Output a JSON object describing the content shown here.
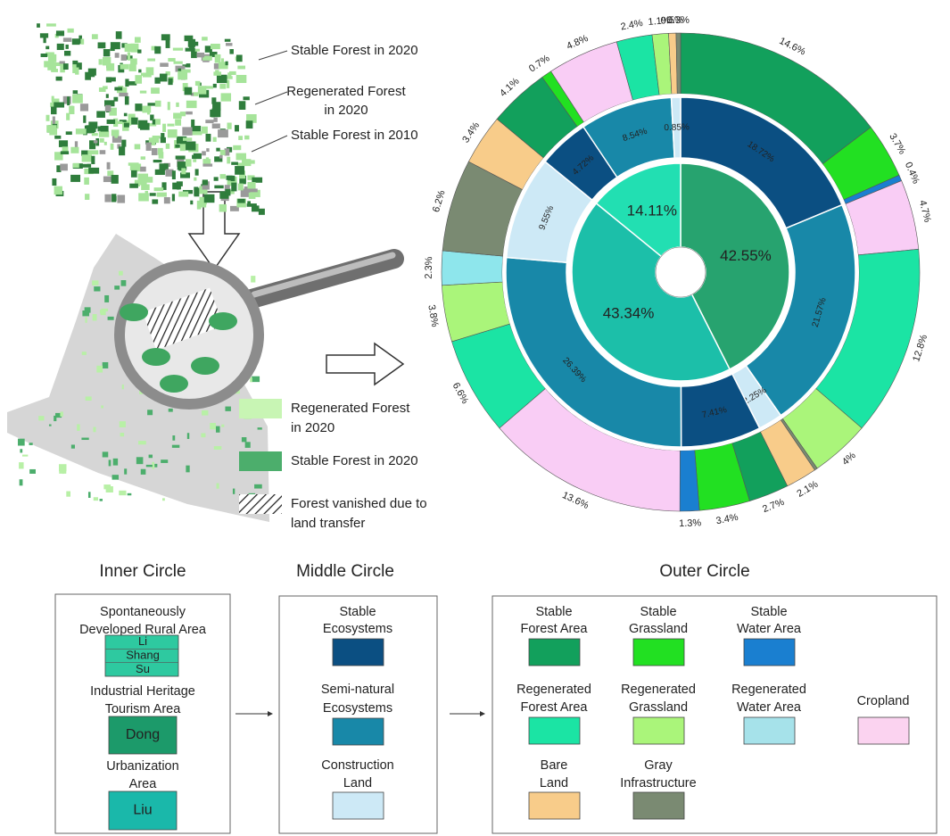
{
  "illustration": {
    "top_labels": [
      [
        "Stable Forest in 2020"
      ],
      [
        "Regenerated Forest",
        "in 2020"
      ],
      [
        "Stable Forest in 2010"
      ]
    ],
    "map_legend": [
      {
        "lines": [
          "Regenerated Forest",
          "in 2020"
        ],
        "color": "#c8f5b4"
      },
      {
        "lines": [
          "Stable Forest in 2020"
        ],
        "color": "#4cae6c"
      },
      {
        "lines": [
          "Forest vanished due to",
          "land transfer"
        ]
      }
    ]
  },
  "chart_data": {
    "type": "sunburst",
    "rings": [
      {
        "values": [
          42.55,
          43.34,
          14.11
        ],
        "value_labels": [
          "42.55%",
          "43.34%",
          "14.11%"
        ],
        "colors": [
          "#27a36f",
          "#1cbfa9",
          "#22dfb2"
        ]
      },
      {
        "values": [
          18.72,
          21.57,
          2.25,
          7.41,
          26.39,
          9.55,
          4.72,
          8.54,
          0.85
        ],
        "value_labels": [
          "18.72%",
          "21.57%",
          "2.25%",
          "7.41%",
          "26.39%",
          "9.55%",
          "4.72%",
          "8.54%",
          "0.85%"
        ],
        "colors": [
          "#0b4f82",
          "#1888a8",
          "#cde9f6",
          "#0b4f82",
          "#1888a8",
          "#cde9f6",
          "#0b4f82",
          "#1888a8",
          "#cde9f6"
        ]
      },
      {
        "values": [
          14.6,
          3.7,
          0.4,
          4.7,
          12.8,
          4,
          0.2,
          2.1,
          2.7,
          3.4,
          1.3,
          13.6,
          6.6,
          3.8,
          2.3,
          6.2,
          3.4,
          4.1,
          0.7,
          4.8,
          2.4,
          1.1,
          0.5,
          0.3
        ],
        "value_labels": [
          "14.6%",
          "3.7%",
          "0.4%",
          "4.7%",
          "12.8%",
          "4%",
          null,
          "2.1%",
          "2.7%",
          "3.4%",
          "1.3%",
          "13.6%",
          "6.6%",
          "3.8%",
          "2.3%",
          "6.2%",
          "3.4%",
          "4.1%",
          "0.7%",
          "4.8%",
          "2.4%",
          "1.1%",
          "0.5%",
          "0.3%"
        ],
        "colors": [
          "#12a05c",
          "#22e022",
          "#1a7fd0",
          "#f9cdf5",
          "#1be4a4",
          "#aaf57a",
          "#7a8a72",
          "#f8cc8a",
          "#12a05c",
          "#22e022",
          "#1a7fd0",
          "#f9cdf5",
          "#1be4a4",
          "#aaf57a",
          "#8ee6ec",
          "#7a8a72",
          "#f8cc8a",
          "#12a05c",
          "#22e022",
          "#f9cdf5",
          "#1be4a4",
          "#aaf57a",
          "#f8cc8a",
          "#7a8a72"
        ]
      }
    ]
  },
  "legend": {
    "inner": {
      "title": "Inner Circle",
      "items": [
        {
          "lines": [
            "Spontaneously",
            "Developed Rural Area"
          ],
          "swatch": [
            "Li",
            "Shang",
            "Su"
          ],
          "color": "#2ec9a0"
        },
        {
          "lines": [
            "Industrial Heritage",
            "Tourism Area"
          ],
          "swatch": [
            "Dong"
          ],
          "color": "#1c9a6a"
        },
        {
          "lines": [
            "Urbanization",
            "Area"
          ],
          "swatch": [
            "Liu"
          ],
          "color": "#1ab8aa"
        }
      ]
    },
    "middle": {
      "title": "Middle Circle",
      "items": [
        {
          "lines": [
            "Stable",
            "Ecosystems"
          ],
          "color": "#0b4f82"
        },
        {
          "lines": [
            "Semi-natural",
            "Ecosystems"
          ],
          "color": "#1888a8"
        },
        {
          "lines": [
            "Construction",
            "Land"
          ],
          "color": "#cde9f6"
        }
      ]
    },
    "outer": {
      "title": "Outer Circle",
      "items": [
        {
          "lines": [
            "Stable",
            "Forest Area"
          ],
          "color": "#12a05c"
        },
        {
          "lines": [
            "Stable",
            "Grassland"
          ],
          "color": "#22e022"
        },
        {
          "lines": [
            "Stable",
            "Water Area"
          ],
          "color": "#1a7fd0"
        },
        {
          "lines": [
            "Regenerated",
            "Forest Area"
          ],
          "color": "#1be4a4"
        },
        {
          "lines": [
            "Regenerated",
            "Grassland"
          ],
          "color": "#aaf57a"
        },
        {
          "lines": [
            "Regenerated",
            "Water Area"
          ],
          "color": "#a6e2ea"
        },
        {
          "lines": [
            "Cropland"
          ],
          "color": "#fbd3f0"
        },
        {
          "lines": [
            "Bare",
            "Land"
          ],
          "color": "#f8cc8a"
        },
        {
          "lines": [
            "Gray",
            "Infrastructure"
          ],
          "color": "#7a8a72"
        }
      ]
    }
  }
}
